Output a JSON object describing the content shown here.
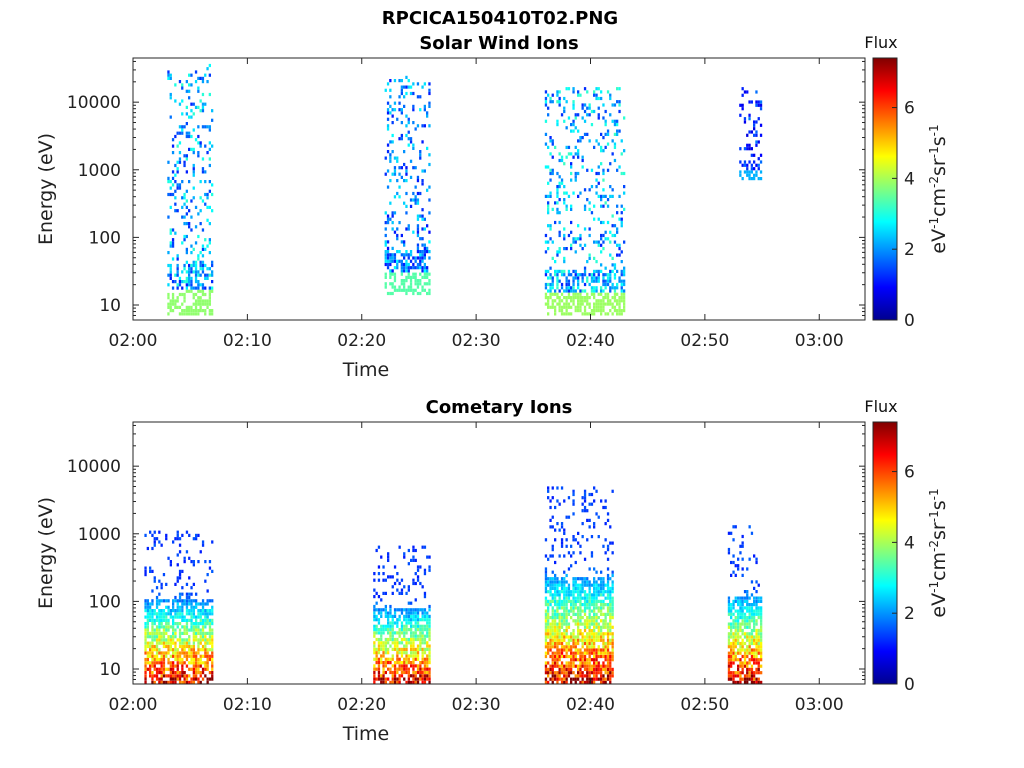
{
  "figure_title": "RPCICA150410T02.PNG",
  "chart_data": [
    {
      "type": "heatmap",
      "title": "Solar Wind Ions",
      "xlabel": "Time",
      "ylabel": "Energy (eV)",
      "yscale": "log",
      "ylim": [
        6,
        45000
      ],
      "xlim": [
        "02:00",
        "03:04"
      ],
      "xticks": [
        "02:00",
        "02:10",
        "02:20",
        "02:30",
        "02:40",
        "02:50",
        "03:00"
      ],
      "yticks": [
        10,
        100,
        1000,
        10000
      ],
      "ytick_labels": [
        "10",
        "100",
        "1000",
        "10000"
      ],
      "colorbar": {
        "label": "Flux",
        "units": "eV-1cm-2sr-1s-1",
        "range": [
          0,
          7.4
        ],
        "ticks": [
          "0",
          "2",
          "4",
          "6"
        ],
        "colormap": "jet"
      },
      "events": [
        {
          "t_start": "02:03",
          "t_end": "02:07",
          "e_min": 7,
          "e_max": 33000,
          "flux_peak": 4.5
        },
        {
          "t_start": "02:22",
          "t_end": "02:26",
          "e_min": 14,
          "e_max": 22000,
          "flux_peak": 4.0
        },
        {
          "t_start": "02:36",
          "t_end": "02:43",
          "e_min": 7,
          "e_max": 15000,
          "flux_peak": 4.6
        },
        {
          "t_start": "02:53",
          "t_end": "02:55",
          "e_min": 700,
          "e_max": 15000,
          "flux_peak": 2.6
        }
      ]
    },
    {
      "type": "heatmap",
      "title": "Cometary Ions",
      "xlabel": "Time",
      "ylabel": "Energy (eV)",
      "yscale": "log",
      "ylim": [
        6,
        45000
      ],
      "xlim": [
        "02:00",
        "03:04"
      ],
      "xticks": [
        "02:00",
        "02:10",
        "02:20",
        "02:30",
        "02:40",
        "02:50",
        "03:00"
      ],
      "yticks": [
        10,
        100,
        1000,
        10000
      ],
      "ytick_labels": [
        "10",
        "100",
        "1000",
        "10000"
      ],
      "colorbar": {
        "label": "Flux",
        "units": "eV-1cm-2sr-1s-1",
        "range": [
          0,
          7.4
        ],
        "ticks": [
          "0",
          "2",
          "4",
          "6"
        ],
        "colormap": "jet"
      },
      "events": [
        {
          "t_start": "02:01",
          "t_end": "02:07",
          "e_min": 6,
          "e_max": 1000,
          "flux_peak": 7.2
        },
        {
          "t_start": "02:21",
          "t_end": "02:26",
          "e_min": 6,
          "e_max": 600,
          "flux_peak": 7.2
        },
        {
          "t_start": "02:36",
          "t_end": "02:42",
          "e_min": 6,
          "e_max": 4500,
          "flux_peak": 7.3
        },
        {
          "t_start": "02:52",
          "t_end": "02:55",
          "e_min": 6,
          "e_max": 1200,
          "flux_peak": 7.4
        }
      ]
    }
  ]
}
